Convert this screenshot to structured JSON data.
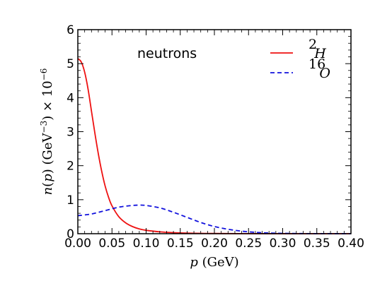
{
  "chart_data": {
    "type": "line",
    "xlabel": "p (GeV)",
    "ylabel": "n(p) (GeV^-3) × 10^-6",
    "annotation": "neutrons",
    "xlim": [
      0.0,
      0.4
    ],
    "ylim": [
      0,
      6
    ],
    "x_ticks": [
      "0.00",
      "0.05",
      "0.10",
      "0.15",
      "0.20",
      "0.25",
      "0.30",
      "0.35",
      "0.40"
    ],
    "y_ticks": [
      "0",
      "1",
      "2",
      "3",
      "4",
      "5",
      "6"
    ],
    "grid": false,
    "legend_position": "top-right",
    "series": [
      {
        "name": "²H",
        "name_base": "H",
        "name_sup": "2",
        "color": "#ee1111",
        "style": "solid",
        "x": [
          0.0,
          0.005,
          0.01,
          0.015,
          0.02,
          0.025,
          0.03,
          0.035,
          0.04,
          0.045,
          0.05,
          0.06,
          0.07,
          0.08,
          0.09,
          0.1,
          0.12,
          0.14,
          0.16,
          0.18,
          0.2,
          0.25,
          0.3,
          0.35,
          0.4
        ],
        "y": [
          5.15,
          5.05,
          4.75,
          4.25,
          3.6,
          2.95,
          2.35,
          1.83,
          1.4,
          1.07,
          0.82,
          0.5,
          0.32,
          0.21,
          0.14,
          0.1,
          0.055,
          0.03,
          0.017,
          0.01,
          0.006,
          0.002,
          0.001,
          0.0005,
          0.0002
        ]
      },
      {
        "name": "¹⁶O",
        "name_base": "O",
        "name_sup": "16",
        "color": "#1111dd",
        "style": "dashed",
        "x": [
          0.0,
          0.02,
          0.04,
          0.06,
          0.08,
          0.09,
          0.1,
          0.12,
          0.14,
          0.16,
          0.18,
          0.2,
          0.22,
          0.24,
          0.26,
          0.28,
          0.3,
          0.32,
          0.34,
          0.36,
          0.38,
          0.4
        ],
        "y": [
          0.53,
          0.58,
          0.68,
          0.78,
          0.83,
          0.84,
          0.83,
          0.76,
          0.63,
          0.48,
          0.33,
          0.21,
          0.13,
          0.075,
          0.04,
          0.02,
          0.01,
          0.005,
          0.003,
          0.002,
          0.001,
          0.0005
        ]
      }
    ]
  }
}
